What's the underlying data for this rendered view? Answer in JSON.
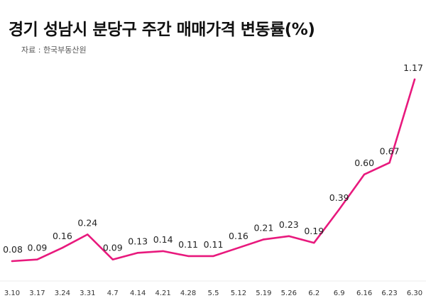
{
  "header": {
    "title": "경기 성남시 분당구 주간 매매가격 변동률(%)",
    "source": "자료 : 한국부동산원"
  },
  "chart_data": {
    "type": "line",
    "title": "경기 성남시 분당구 주간 매매가격 변동률(%)",
    "xlabel": "",
    "ylabel": "",
    "categories": [
      "3.10",
      "3.17",
      "3.24",
      "3.31",
      "4.7",
      "4.14",
      "4.21",
      "4.28",
      "5.5",
      "5.12",
      "5.19",
      "5.26",
      "6.2",
      "6.9",
      "6.16",
      "6.23",
      "6.30"
    ],
    "labels": [
      "0.08",
      "0.09",
      "0.16",
      "0.24",
      "0.09",
      "0.13",
      "0.14",
      "0.11",
      "0.11",
      "0.16",
      "0.21",
      "0.23",
      "0.19",
      "0.39",
      "0.60",
      "0.67",
      "1.17"
    ],
    "series": [
      {
        "values": [
          0.08,
          0.09,
          0.16,
          0.24,
          0.09,
          0.13,
          0.14,
          0.11,
          0.11,
          0.16,
          0.21,
          0.23,
          0.19,
          0.39,
          0.6,
          0.67,
          1.17
        ]
      }
    ],
    "line_color": "#e8197d",
    "grid": false,
    "legend": "none"
  }
}
